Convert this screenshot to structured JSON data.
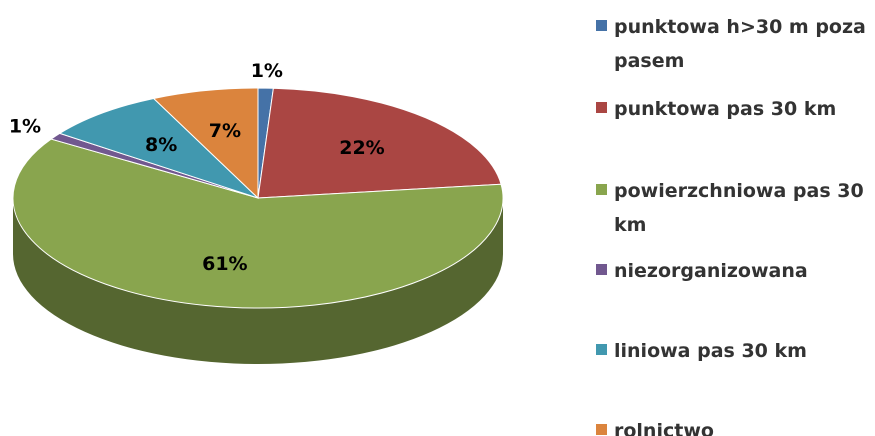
{
  "chart_data": {
    "type": "pie",
    "categories": [
      "punktowa h>30 m poza pasem",
      "punktowa pas 30 km",
      "powierzchniowa pas 30 km",
      "niezorganizowana",
      "liniowa pas 30 km",
      "rolnictwo"
    ],
    "values": [
      1,
      22,
      61,
      1,
      8,
      7
    ],
    "value_labels": [
      "1%",
      "22%",
      "61%",
      "1%",
      "8%",
      "7%"
    ],
    "colors": [
      "#4572a7",
      "#aa4643",
      "#89a54e",
      "#71588f",
      "#4198af",
      "#db843d"
    ],
    "legend": "right"
  }
}
